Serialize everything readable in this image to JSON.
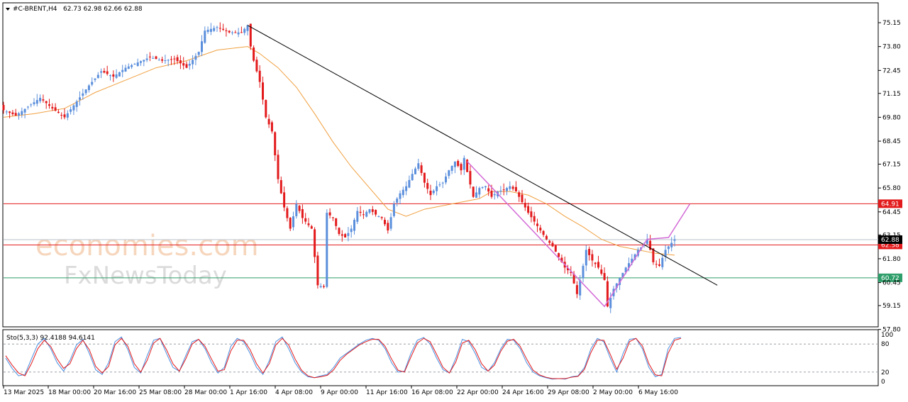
{
  "header": {
    "symbol_label": "#C-BRENT,H4",
    "ohlc_label": "62.73 62.98 62.66 62.88"
  },
  "watermark": {
    "line1": "economies.com",
    "line2": "FxNewsToday"
  },
  "colors": {
    "bull": "#5b8fdc",
    "bear": "#e31a1c",
    "ma": "#f0a040",
    "trendline": "#000000",
    "channel": "#d36ad6",
    "resistance": "#e31a1c",
    "support": "#2e9e6a",
    "stoch_main": "#4a8ee0",
    "stoch_signal": "#e31a1c"
  },
  "chart_data": [
    {
      "type": "candlestick",
      "title": "#C-BRENT,H4",
      "ylim": [
        57.8,
        75.9
      ],
      "y_ticks": [
        "75.15",
        "73.80",
        "72.45",
        "71.15",
        "69.80",
        "68.45",
        "67.15",
        "65.80",
        "64.45",
        "63.15",
        "61.80",
        "60.45",
        "59.15",
        "57.80"
      ],
      "x_ticks": [
        "13 Mar 2025",
        "18 Mar 00:00",
        "20 Mar 16:00",
        "25 Mar 08:00",
        "28 Mar 00:00",
        "1 Apr 16:00",
        "4 Apr 08:00",
        "9 Apr 00:00",
        "11 Apr 16:00",
        "16 Apr 08:00",
        "22 Apr 00:00",
        "24 Apr 16:00",
        "29 Apr 08:00",
        "2 May 00:00",
        "6 May 16:00"
      ],
      "horizontal_levels": [
        {
          "value": 64.91,
          "label": "64.91",
          "color": "#e31a1c"
        },
        {
          "value": 62.58,
          "label": "62.58",
          "color": "#e31a1c"
        },
        {
          "value": 60.72,
          "label": "60.72",
          "color": "#2e9e6a"
        }
      ],
      "current_price": {
        "value": 62.88,
        "label": "62.88"
      },
      "path_points": [
        [
          0,
          70.2
        ],
        [
          4,
          69.9
        ],
        [
          8,
          70.4
        ],
        [
          12,
          70.9
        ],
        [
          16,
          70.3
        ],
        [
          20,
          69.8
        ],
        [
          24,
          70.7
        ],
        [
          28,
          71.6
        ],
        [
          32,
          72.4
        ],
        [
          36,
          72.1
        ],
        [
          40,
          72.6
        ],
        [
          44,
          72.9
        ],
        [
          48,
          73.2
        ],
        [
          52,
          73.0
        ],
        [
          56,
          73.1
        ],
        [
          60,
          72.6
        ],
        [
          64,
          73.5
        ],
        [
          66,
          74.7
        ],
        [
          70,
          74.9
        ],
        [
          74,
          74.6
        ],
        [
          78,
          74.6
        ],
        [
          80,
          75.0
        ],
        [
          81,
          73.8
        ],
        [
          82,
          73.0
        ],
        [
          84,
          71.8
        ],
        [
          86,
          69.8
        ],
        [
          88,
          69.0
        ],
        [
          90,
          66.3
        ],
        [
          92,
          64.7
        ],
        [
          94,
          63.5
        ],
        [
          96,
          64.9
        ],
        [
          98,
          64.1
        ],
        [
          101,
          63.5
        ],
        [
          103,
          60.3
        ],
        [
          105,
          60.2
        ],
        [
          106,
          64.4
        ],
        [
          108,
          64.1
        ],
        [
          110,
          63.2
        ],
        [
          112,
          63.0
        ],
        [
          114,
          63.5
        ],
        [
          116,
          64.5
        ],
        [
          118,
          64.3
        ],
        [
          120,
          64.6
        ],
        [
          122,
          64.3
        ],
        [
          124,
          64.1
        ],
        [
          126,
          63.4
        ],
        [
          128,
          64.9
        ],
        [
          130,
          65.5
        ],
        [
          132,
          65.9
        ],
        [
          134,
          66.6
        ],
        [
          136,
          67.2
        ],
        [
          138,
          66.1
        ],
        [
          140,
          65.4
        ],
        [
          142,
          65.9
        ],
        [
          144,
          66.1
        ],
        [
          146,
          66.8
        ],
        [
          148,
          67.3
        ],
        [
          150,
          66.8
        ],
        [
          151,
          67.5
        ],
        [
          152,
          66.7
        ],
        [
          154,
          65.3
        ],
        [
          156,
          65.8
        ],
        [
          158,
          65.9
        ],
        [
          160,
          65.3
        ],
        [
          162,
          65.6
        ],
        [
          164,
          65.7
        ],
        [
          166,
          65.9
        ],
        [
          168,
          65.6
        ],
        [
          170,
          65.0
        ],
        [
          172,
          64.4
        ],
        [
          174,
          63.9
        ],
        [
          176,
          63.4
        ],
        [
          178,
          62.9
        ],
        [
          180,
          62.5
        ],
        [
          182,
          61.9
        ],
        [
          184,
          61.3
        ],
        [
          186,
          61.0
        ],
        [
          188,
          59.8
        ],
        [
          190,
          61.4
        ],
        [
          191,
          62.3
        ],
        [
          193,
          61.7
        ],
        [
          195,
          61.3
        ],
        [
          197,
          60.6
        ],
        [
          198,
          59.1
        ],
        [
          200,
          60.1
        ],
        [
          202,
          60.7
        ],
        [
          204,
          61.3
        ],
        [
          206,
          61.8
        ],
        [
          208,
          62.3
        ],
        [
          210,
          62.6
        ],
        [
          211,
          62.9
        ],
        [
          212,
          62.3
        ],
        [
          213,
          61.6
        ],
        [
          215,
          61.4
        ],
        [
          217,
          62.3
        ],
        [
          219,
          62.7
        ],
        [
          220,
          62.9
        ]
      ],
      "ma_points": [
        [
          0,
          69.8
        ],
        [
          10,
          70.0
        ],
        [
          20,
          70.3
        ],
        [
          30,
          71.2
        ],
        [
          40,
          71.9
        ],
        [
          50,
          72.6
        ],
        [
          60,
          73.0
        ],
        [
          70,
          73.6
        ],
        [
          80,
          73.8
        ],
        [
          84,
          73.4
        ],
        [
          90,
          72.6
        ],
        [
          96,
          71.5
        ],
        [
          102,
          70.0
        ],
        [
          108,
          68.4
        ],
        [
          114,
          67.0
        ],
        [
          120,
          65.8
        ],
        [
          126,
          64.6
        ],
        [
          132,
          64.2
        ],
        [
          138,
          64.6
        ],
        [
          144,
          64.8
        ],
        [
          150,
          65.0
        ],
        [
          156,
          65.2
        ],
        [
          160,
          65.6
        ],
        [
          166,
          65.6
        ],
        [
          172,
          65.4
        ],
        [
          178,
          64.9
        ],
        [
          184,
          64.2
        ],
        [
          190,
          63.6
        ],
        [
          196,
          62.9
        ],
        [
          202,
          62.5
        ],
        [
          208,
          62.3
        ],
        [
          214,
          62.1
        ],
        [
          220,
          62.0
        ]
      ],
      "trendline_points": [
        [
          80,
          75.0
        ],
        [
          234,
          60.3
        ]
      ],
      "channel_points": [
        [
          152,
          67.3
        ],
        [
          197,
          59.1
        ],
        [
          211,
          62.9
        ],
        [
          218,
          63.0
        ],
        [
          225,
          64.9
        ]
      ]
    },
    {
      "type": "line",
      "title": "Sto(5,3,3) 92.4188 94.6141",
      "ylim": [
        0,
        100
      ],
      "y_ticks": [
        "100",
        "80",
        "20",
        "0"
      ],
      "levels": [
        80,
        20
      ],
      "series": [
        {
          "name": "Main",
          "values": [
            50,
            28,
            12,
            15,
            48,
            80,
            92,
            70,
            40,
            22,
            45,
            78,
            90,
            60,
            25,
            15,
            40,
            85,
            95,
            68,
            30,
            18,
            55,
            88,
            92,
            60,
            30,
            22,
            55,
            85,
            90,
            70,
            40,
            18,
            30,
            75,
            92,
            85,
            60,
            30,
            15,
            45,
            85,
            95,
            70,
            40,
            20,
            10,
            8,
            12,
            15,
            30,
            50,
            60,
            70,
            80,
            88,
            92,
            88,
            70,
            40,
            20,
            22,
            60,
            88,
            94,
            80,
            50,
            25,
            18,
            50,
            90,
            85,
            60,
            30,
            22,
            40,
            70,
            90,
            88,
            70,
            40,
            20,
            12,
            8,
            5,
            6,
            5,
            10,
            12,
            30,
            70,
            92,
            85,
            50,
            20,
            60,
            90,
            92,
            70,
            30,
            10,
            15,
            70,
            92,
            94
          ]
        },
        {
          "name": "Signal",
          "values": [
            55,
            35,
            18,
            12,
            38,
            70,
            88,
            75,
            48,
            28,
            38,
            70,
            88,
            68,
            32,
            18,
            32,
            78,
            92,
            75,
            38,
            20,
            45,
            82,
            92,
            68,
            38,
            22,
            48,
            80,
            90,
            75,
            48,
            22,
            25,
            65,
            88,
            88,
            68,
            38,
            18,
            38,
            78,
            92,
            78,
            48,
            24,
            12,
            8,
            10,
            13,
            25,
            45,
            58,
            68,
            78,
            85,
            90,
            90,
            75,
            48,
            24,
            20,
            52,
            82,
            92,
            85,
            58,
            30,
            18,
            42,
            82,
            88,
            68,
            38,
            22,
            35,
            65,
            86,
            90,
            75,
            48,
            24,
            14,
            9,
            6,
            6,
            6,
            9,
            11,
            26,
            62,
            88,
            88,
            58,
            26,
            50,
            85,
            92,
            76,
            38,
            14,
            12,
            60,
            88,
            92
          ]
        }
      ]
    }
  ]
}
